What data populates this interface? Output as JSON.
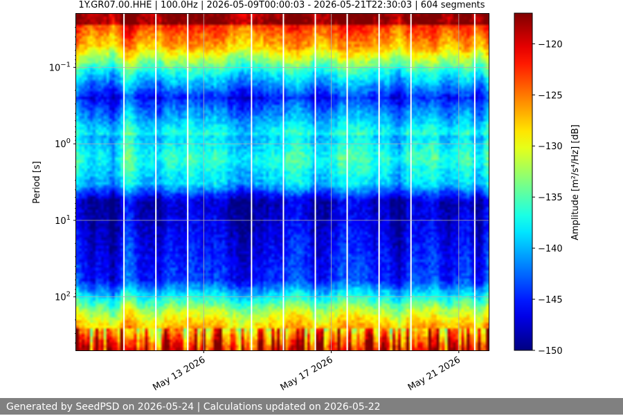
{
  "chart_data": {
    "type": "heatmap",
    "title": "1Y.GR07.00.HHE | 100.0Hz | 2026-05-09T00:00:03 - 2026-05-21T22:30:03 | 604 segments",
    "xlabel": "",
    "ylabel": "Period [s]",
    "x_range": [
      "2026-05-09T00:00:03",
      "2026-05-21T22:30:03"
    ],
    "x_ticks": [
      "May 13 2026",
      "May 17 2026",
      "May 21 2026"
    ],
    "y_scale": "log",
    "y_axis_inverted": true,
    "y_range": [
      0.02,
      500
    ],
    "y_ticks": [
      {
        "value": 0.1,
        "base": "10",
        "exp": "−1"
      },
      {
        "value": 1,
        "base": "10",
        "exp": "0"
      },
      {
        "value": 10,
        "base": "10",
        "exp": "1"
      },
      {
        "value": 100,
        "base": "10",
        "exp": "2"
      }
    ],
    "grid": true,
    "colormap": "jet",
    "colorbar": {
      "label": "Amplitude [m²/s⁴/Hz] [dB]",
      "range": [
        -150,
        -117
      ],
      "ticks": [
        "−120",
        "−125",
        "−130",
        "−135",
        "−140",
        "−145",
        "−150"
      ]
    },
    "segments": 604,
    "data_gap_dates": [
      "2026-05-10",
      "2026-05-11",
      "2026-05-12",
      "2026-05-14",
      "2026-05-15",
      "2026-05-16",
      "2026-05-17",
      "2026-05-18",
      "2026-05-19",
      "2026-05-21"
    ]
  },
  "footer": {
    "text": "Generated by SeedPSD on 2026-05-24 | Calculations updated on 2026-05-22"
  }
}
